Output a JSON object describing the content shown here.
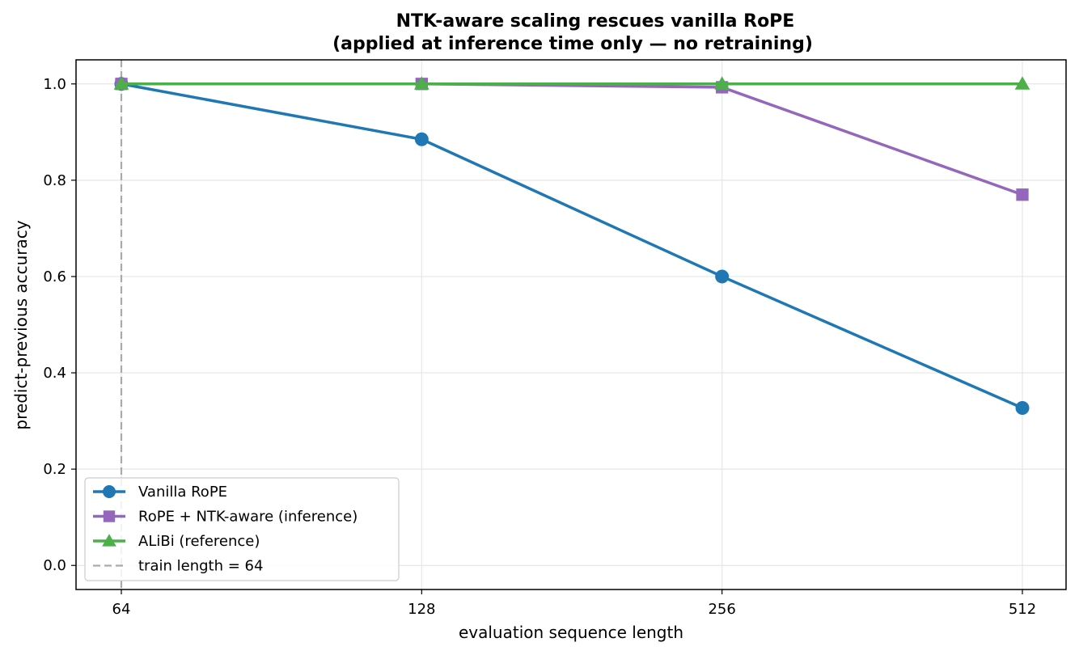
{
  "chart_data": {
    "type": "line",
    "title": "NTK-aware scaling rescues vanilla RoPE",
    "subtitle": "(applied at inference time only — no retraining)",
    "xlabel": "evaluation sequence length",
    "ylabel": "predict-previous accuracy",
    "x_scale": "log2",
    "x": [
      64,
      128,
      256,
      512
    ],
    "x_tick_labels": [
      "64",
      "128",
      "256",
      "512"
    ],
    "ylim": [
      -0.05,
      1.05
    ],
    "y_ticks": [
      0.0,
      0.2,
      0.4,
      0.6,
      0.8,
      1.0
    ],
    "y_tick_labels": [
      "0.0",
      "0.2",
      "0.4",
      "0.6",
      "0.8",
      "1.0"
    ],
    "grid": true,
    "legend_position": "lower-left",
    "series": [
      {
        "name": "Vanilla RoPE",
        "values": [
          1.0,
          0.885,
          0.6,
          0.327
        ],
        "color": "#1f77b4",
        "marker": "circle"
      },
      {
        "name": "RoPE + NTK-aware (inference)",
        "values": [
          1.0,
          1.0,
          0.993,
          0.77
        ],
        "color": "#9467bd",
        "marker": "square"
      },
      {
        "name": "ALiBi (reference)",
        "values": [
          1.0,
          1.0,
          1.0,
          1.0
        ],
        "color": "#4daf4a",
        "marker": "triangle"
      }
    ],
    "reference_line": {
      "label": "train length = 64",
      "x": 64,
      "color": "#aaaaaa",
      "style": "dashed"
    }
  }
}
